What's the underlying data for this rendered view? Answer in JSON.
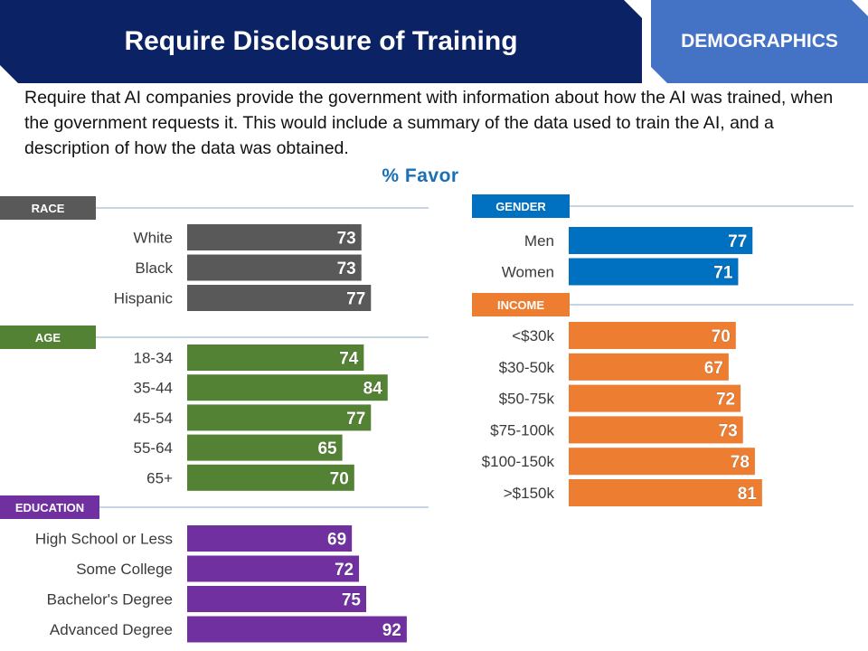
{
  "header": {
    "title": "Require Disclosure of Training",
    "section_label": "DEMOGRAPHICS",
    "title_color": "#0b2265",
    "section_color": "#4472c4"
  },
  "question_text": "Require that AI companies provide the government with information about how the AI was trained, when the government requests it. This would include a summary of the data used to train the AI, and a description of how the data was obtained.",
  "chart_data": {
    "type": "bar",
    "orientation": "horizontal",
    "title": "% Favor",
    "xlim": [
      0,
      100
    ],
    "groups": [
      {
        "name": "RACE",
        "color": "#595959",
        "categories": [
          "White",
          "Black",
          "Hispanic"
        ],
        "values": [
          73,
          73,
          77
        ]
      },
      {
        "name": "AGE",
        "color": "#548235",
        "categories": [
          "18-34",
          "35-44",
          "45-54",
          "55-64",
          "65+"
        ],
        "values": [
          74,
          84,
          77,
          65,
          70
        ]
      },
      {
        "name": "EDUCATION",
        "color": "#7030a0",
        "categories": [
          "High School or Less",
          "Some College",
          "Bachelor's Degree",
          "Advanced Degree"
        ],
        "values": [
          69,
          72,
          75,
          92
        ]
      },
      {
        "name": "GENDER",
        "color": "#0070c0",
        "categories": [
          "Men",
          "Women"
        ],
        "values": [
          77,
          71
        ]
      },
      {
        "name": "INCOME",
        "color": "#ed7d31",
        "categories": [
          "<$30k",
          "$30-50k",
          "$50-75k",
          "$75-100k",
          "$100-150k",
          ">$150k"
        ],
        "values": [
          70,
          67,
          72,
          73,
          78,
          81
        ]
      }
    ]
  }
}
